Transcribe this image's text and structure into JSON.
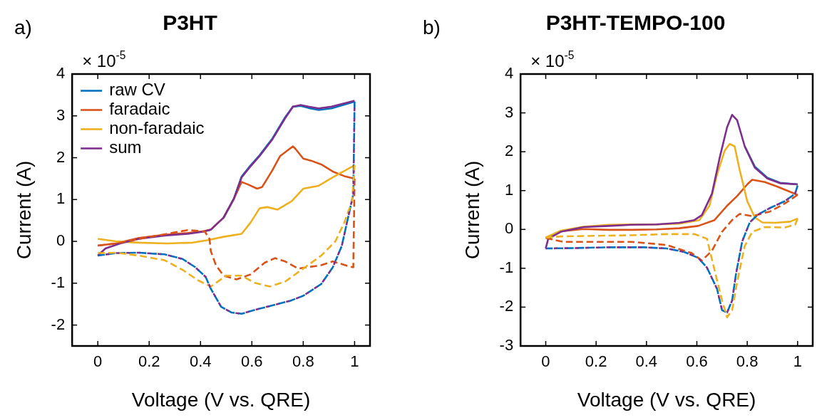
{
  "chart_data": [
    {
      "type": "line",
      "title": "P3HT",
      "xlabel": "Voltage (V vs. QRE)",
      "ylabel": "Current (A)",
      "annotations": [
        "a)",
        "× 10$^{-5}$"
      ],
      "xlim": [
        -0.1,
        1.06
      ],
      "ylim": [
        -2.5,
        4
      ],
      "xticks": [
        0,
        0.2,
        0.4,
        0.6,
        0.8,
        1
      ],
      "yticks": [
        -2,
        -1,
        0,
        1,
        2,
        3,
        4
      ],
      "legend": "top left",
      "series": [
        {
          "name": "raw CV",
          "color": "#0072bd",
          "line_style": "solid",
          "x": [
            0.49,
            0.53,
            0.56,
            0.59,
            0.63,
            0.68,
            0.73,
            0.76,
            0.79,
            0.82,
            0.86,
            0.91,
            1.0
          ],
          "values": [
            0.57,
            1.02,
            1.55,
            1.78,
            2.06,
            2.46,
            2.97,
            3.22,
            3.24,
            3.19,
            3.14,
            3.18,
            3.34
          ]
        },
        {
          "name": "faradaic",
          "color": "#d95319",
          "line_style": "solid",
          "x": [
            0,
            0.07,
            0.16,
            0.26,
            0.35,
            0.41,
            0.44,
            0.49,
            0.53,
            0.56,
            0.585,
            0.62,
            0.64,
            0.68,
            0.71,
            0.74,
            0.76,
            0.77,
            0.8,
            0.83,
            0.87,
            0.915,
            0.96,
            1.0
          ],
          "values": [
            -0.1,
            -0.05,
            0.08,
            0.16,
            0.2,
            0.24,
            0.28,
            0.57,
            1.02,
            1.42,
            1.36,
            1.26,
            1.3,
            1.7,
            2.04,
            2.18,
            2.27,
            2.21,
            1.98,
            1.93,
            1.84,
            1.67,
            1.56,
            1.5
          ]
        },
        {
          "name": "non-faradaic",
          "color": "#edb120",
          "line_style": "solid",
          "x": [
            0,
            0.07,
            0.16,
            0.27,
            0.37,
            0.43,
            0.49,
            0.56,
            0.595,
            0.63,
            0.66,
            0.7,
            0.755,
            0.8,
            0.86,
            0.915,
            1.0
          ],
          "values": [
            0.06,
            0,
            -0.03,
            -0.05,
            -0.03,
            0.03,
            0.11,
            0.18,
            0.45,
            0.79,
            0.82,
            0.76,
            0.96,
            1.26,
            1.33,
            1.53,
            1.82
          ]
        },
        {
          "name": "sum",
          "color": "#7e2f8e",
          "line_style": "solid",
          "x": [
            0,
            0.03,
            0.087,
            0.16,
            0.26,
            0.35,
            0.41,
            0.44,
            0.49,
            0.53,
            0.56,
            0.59,
            0.63,
            0.68,
            0.73,
            0.76,
            0.79,
            0.82,
            0.86,
            0.91,
            1.0
          ],
          "values": [
            -0.34,
            -0.17,
            -0.05,
            0.06,
            0.14,
            0.18,
            0.23,
            0.28,
            0.57,
            1.02,
            1.53,
            1.76,
            2.04,
            2.44,
            2.95,
            3.22,
            3.26,
            3.22,
            3.18,
            3.22,
            3.36
          ]
        },
        {
          "color": "#0072bd",
          "line_style": "dashed",
          "x": [
            1.0,
            0.995,
            0.95,
            0.915,
            0.87,
            0.8,
            0.75,
            0.68,
            0.61,
            0.56,
            0.52,
            0.48,
            0.44,
            0.42,
            0.38,
            0.33,
            0.26,
            0.16,
            0.07,
            0
          ],
          "values": [
            3.34,
            1.13,
            -0.11,
            -0.62,
            -1.02,
            -1.3,
            -1.42,
            -1.53,
            -1.64,
            -1.73,
            -1.7,
            -1.56,
            -1.13,
            -0.85,
            -0.62,
            -0.42,
            -0.31,
            -0.27,
            -0.28,
            -0.34
          ]
        },
        {
          "color": "#d95319",
          "line_style": "dashed",
          "x": [
            1.0,
            0.995,
            0.98,
            0.915,
            0.87,
            0.78,
            0.73,
            0.69,
            0.65,
            0.595,
            0.54,
            0.49,
            0.46,
            0.44,
            0.435,
            0.416,
            0.35,
            0.16,
            0.07,
            0
          ],
          "values": [
            1.5,
            -0.62,
            -0.6,
            -0.48,
            -0.57,
            -0.65,
            -0.48,
            -0.4,
            -0.51,
            -0.79,
            -0.91,
            -0.82,
            -0.57,
            -0.23,
            0.06,
            0.24,
            0.27,
            0.06,
            -0.05,
            -0.1
          ]
        },
        {
          "color": "#edb120",
          "line_style": "dashed",
          "x": [
            1.0,
            0.99,
            0.96,
            0.925,
            0.87,
            0.78,
            0.73,
            0.67,
            0.61,
            0.56,
            0.5,
            0.44,
            0.39,
            0.33,
            0.26,
            0.16,
            0.07,
            0
          ],
          "values": [
            1.82,
            0.96,
            0.45,
            0,
            -0.34,
            -0.74,
            -0.96,
            -1.08,
            -0.99,
            -0.82,
            -0.82,
            -1.08,
            -0.93,
            -0.68,
            -0.45,
            -0.34,
            -0.27,
            -0.28
          ]
        },
        {
          "color": "#7e2f8e",
          "line_style": "dashed",
          "x": [
            1.0,
            0.995,
            0.95,
            0.915,
            0.87,
            0.8,
            0.75,
            0.68,
            0.61,
            0.56,
            0.52,
            0.48,
            0.44,
            0.42,
            0.38,
            0.33,
            0.26,
            0.16,
            0.07,
            0
          ],
          "values": [
            3.36,
            1.13,
            -0.11,
            -0.62,
            -1.02,
            -1.3,
            -1.42,
            -1.53,
            -1.64,
            -1.73,
            -1.7,
            -1.56,
            -1.13,
            -0.85,
            -0.62,
            -0.42,
            -0.31,
            -0.27,
            -0.28,
            -0.34
          ]
        }
      ]
    },
    {
      "type": "line",
      "title": "P3HT-TEMPO-100",
      "xlabel": "Voltage (V vs. QRE)",
      "ylabel": "Current (A)",
      "annotations": [
        "b)",
        "× 10$^{-5}$"
      ],
      "xlim": [
        -0.1,
        1.06
      ],
      "ylim": [
        -3,
        4
      ],
      "xticks": [
        0,
        0.2,
        0.4,
        0.6,
        0.8,
        1
      ],
      "yticks": [
        -3,
        -2,
        -1,
        0,
        1,
        2,
        3,
        4
      ],
      "series": [
        {
          "color": "#0072bd",
          "line_style": "solid",
          "x": [
            0.79,
            0.83,
            0.88,
            0.93,
            1.0
          ],
          "values": [
            2.14,
            1.62,
            1.33,
            1.2,
            1.16
          ]
        },
        {
          "color": "#d95319",
          "line_style": "solid",
          "x": [
            0,
            0.06,
            0.15,
            0.25,
            0.34,
            0.44,
            0.53,
            0.605,
            0.67,
            0.72,
            0.76,
            0.8,
            0.82,
            0.87,
            0.92,
            1.0
          ],
          "values": [
            -0.22,
            -0.05,
            0.01,
            -0.01,
            -0.01,
            0,
            0.03,
            0.09,
            0.24,
            0.61,
            0.86,
            1.16,
            1.28,
            1.22,
            1.1,
            0.89
          ]
        },
        {
          "color": "#edb120",
          "line_style": "solid",
          "x": [
            0,
            0.06,
            0.15,
            0.25,
            0.34,
            0.44,
            0.53,
            0.61,
            0.65,
            0.68,
            0.71,
            0.73,
            0.75,
            0.77,
            0.8,
            0.83,
            0.86,
            0.91,
            0.97,
            1.0
          ],
          "values": [
            -0.21,
            -0.03,
            0.07,
            0.12,
            0.13,
            0.13,
            0.15,
            0.24,
            0.61,
            1.41,
            2.02,
            2.2,
            2.14,
            1.53,
            0.73,
            0.31,
            0.18,
            0.17,
            0.2,
            0.28
          ]
        },
        {
          "color": "#7e2f8e",
          "line_style": "solid",
          "x": [
            0,
            0.01,
            0.06,
            0.15,
            0.25,
            0.34,
            0.44,
            0.53,
            0.59,
            0.62,
            0.66,
            0.69,
            0.72,
            0.74,
            0.76,
            0.79,
            0.83,
            0.88,
            0.93,
            1.0
          ],
          "values": [
            -0.49,
            -0.24,
            -0.06,
            0.06,
            0.09,
            0.12,
            0.13,
            0.17,
            0.24,
            0.37,
            0.92,
            1.83,
            2.63,
            2.95,
            2.81,
            2.14,
            1.59,
            1.31,
            1.19,
            1.16
          ]
        },
        {
          "color": "#0072bd",
          "line_style": "dashed",
          "x": [
            1.0,
            0.99,
            0.95,
            0.89,
            0.84,
            0.81,
            0.78,
            0.755,
            0.74,
            0.72,
            0.7,
            0.68,
            0.64,
            0.605,
            0.55,
            0.48,
            0.39,
            0.25,
            0.11,
            0
          ],
          "values": [
            1.13,
            0.92,
            0.73,
            0.55,
            0.37,
            0.18,
            -0.31,
            -1.16,
            -1.83,
            -2.14,
            -2.08,
            -1.53,
            -0.98,
            -0.73,
            -0.58,
            -0.49,
            -0.46,
            -0.46,
            -0.48,
            -0.49
          ]
        },
        {
          "color": "#d95319",
          "line_style": "dashed",
          "x": [
            1.0,
            0.95,
            0.89,
            0.82,
            0.77,
            0.74,
            0.7,
            0.66,
            0.62,
            0.58,
            0.48,
            0.34,
            0.2,
            0.07,
            0
          ],
          "values": [
            0.89,
            0.67,
            0.46,
            0.34,
            0.4,
            0.24,
            -0.06,
            -0.55,
            -0.8,
            -0.61,
            -0.4,
            -0.32,
            -0.32,
            -0.32,
            -0.22
          ]
        },
        {
          "color": "#edb120",
          "line_style": "dashed",
          "x": [
            1.0,
            0.99,
            0.95,
            0.87,
            0.82,
            0.79,
            0.76,
            0.74,
            0.72,
            0.7,
            0.67,
            0.64,
            0.59,
            0.48,
            0.34,
            0.15,
            0.06,
            0
          ],
          "values": [
            0.28,
            0.12,
            0.05,
            0.06,
            -0.06,
            -0.43,
            -1.35,
            -2.08,
            -2.26,
            -1.83,
            -1.04,
            -0.24,
            -0.12,
            -0.12,
            -0.15,
            -0.17,
            -0.18,
            -0.21
          ]
        },
        {
          "color": "#7e2f8e",
          "line_style": "dashed",
          "x": [
            1.0,
            0.99,
            0.95,
            0.89,
            0.84,
            0.81,
            0.78,
            0.755,
            0.74,
            0.72,
            0.7,
            0.68,
            0.64,
            0.605,
            0.55,
            0.48,
            0.39,
            0.25,
            0.11,
            0
          ],
          "values": [
            1.16,
            0.92,
            0.73,
            0.55,
            0.37,
            0.18,
            -0.31,
            -1.16,
            -1.83,
            -2.14,
            -2.08,
            -1.53,
            -0.98,
            -0.73,
            -0.58,
            -0.49,
            -0.46,
            -0.46,
            -0.48,
            -0.49
          ]
        }
      ]
    }
  ]
}
